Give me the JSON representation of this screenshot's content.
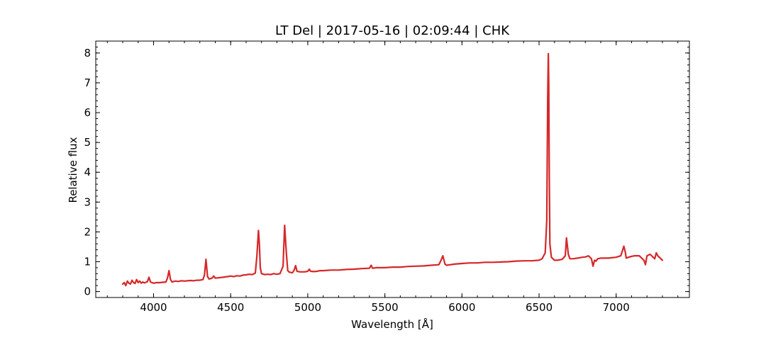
{
  "chart_data": {
    "type": "line",
    "title": "LT Del | 2017-05-16 | 02:09:44 | CHK",
    "xlabel": "Wavelength [Å]",
    "ylabel": "Relative flux",
    "xlim": [
      3625,
      7475
    ],
    "ylim": [
      -0.2,
      8.4
    ],
    "x_ticks": [
      4000,
      4500,
      5000,
      5500,
      6000,
      6500,
      7000
    ],
    "y_ticks": [
      0,
      1,
      2,
      3,
      4,
      5,
      6,
      7,
      8
    ],
    "x_minor_step": 100,
    "y_minor_step": 0.2,
    "grid": false,
    "legend": "none",
    "line_color": "#d62728",
    "series": [
      {
        "x": [
          3800,
          3810,
          3820,
          3830,
          3840,
          3850,
          3860,
          3870,
          3880,
          3890,
          3900,
          3910,
          3920,
          3930,
          3940,
          3950,
          3960,
          3970,
          3980,
          3990,
          4000,
          4020,
          4040,
          4060,
          4080,
          4090,
          4100,
          4110,
          4120,
          4140,
          4160,
          4180,
          4200,
          4220,
          4240,
          4260,
          4280,
          4300,
          4320,
          4330,
          4340,
          4350,
          4360,
          4380,
          4390,
          4400,
          4420,
          4450,
          4480,
          4500,
          4520,
          4540,
          4560,
          4580,
          4600,
          4620,
          4640,
          4660,
          4670,
          4680,
          4686,
          4692,
          4700,
          4720,
          4740,
          4760,
          4780,
          4800,
          4820,
          4840,
          4850,
          4861,
          4870,
          4880,
          4900,
          4910,
          4921,
          4930,
          4950,
          4980,
          5000,
          5010,
          5015,
          5020,
          5040,
          5060,
          5080,
          5100,
          5150,
          5200,
          5250,
          5300,
          5350,
          5400,
          5411,
          5420,
          5450,
          5500,
          5550,
          5600,
          5650,
          5700,
          5750,
          5800,
          5850,
          5860,
          5876,
          5890,
          5900,
          5950,
          6000,
          6050,
          6100,
          6150,
          6200,
          6250,
          6300,
          6350,
          6400,
          6450,
          6500,
          6520,
          6540,
          6550,
          6556,
          6560,
          6563,
          6566,
          6570,
          6580,
          6600,
          6620,
          6650,
          6670,
          6678,
          6690,
          6700,
          6720,
          6750,
          6780,
          6800,
          6820,
          6840,
          6850,
          6860,
          6870,
          6880,
          6900,
          6950,
          7000,
          7030,
          7050,
          7060,
          7065,
          7080,
          7100,
          7120,
          7150,
          7180,
          7190,
          7200,
          7220,
          7240,
          7250,
          7260,
          7270,
          7280,
          7290,
          7300
        ],
        "y": [
          0.25,
          0.3,
          0.2,
          0.35,
          0.28,
          0.25,
          0.38,
          0.3,
          0.27,
          0.4,
          0.3,
          0.35,
          0.28,
          0.32,
          0.29,
          0.31,
          0.33,
          0.48,
          0.32,
          0.3,
          0.28,
          0.3,
          0.3,
          0.31,
          0.32,
          0.45,
          0.7,
          0.4,
          0.32,
          0.35,
          0.34,
          0.36,
          0.35,
          0.36,
          0.37,
          0.36,
          0.38,
          0.38,
          0.4,
          0.55,
          1.08,
          0.5,
          0.42,
          0.45,
          0.52,
          0.45,
          0.46,
          0.48,
          0.5,
          0.52,
          0.5,
          0.53,
          0.52,
          0.55,
          0.56,
          0.58,
          0.57,
          0.62,
          1.2,
          2.05,
          1.6,
          0.8,
          0.6,
          0.57,
          0.58,
          0.57,
          0.6,
          0.58,
          0.6,
          0.85,
          2.22,
          1.3,
          0.7,
          0.65,
          0.63,
          0.7,
          0.87,
          0.68,
          0.66,
          0.66,
          0.68,
          0.75,
          0.7,
          0.68,
          0.67,
          0.68,
          0.7,
          0.7,
          0.72,
          0.72,
          0.74,
          0.75,
          0.77,
          0.78,
          0.88,
          0.78,
          0.8,
          0.8,
          0.82,
          0.82,
          0.84,
          0.85,
          0.86,
          0.88,
          0.9,
          1.0,
          1.2,
          0.92,
          0.88,
          0.92,
          0.94,
          0.96,
          0.96,
          0.98,
          0.98,
          0.99,
          1.0,
          1.02,
          1.03,
          1.03,
          1.05,
          1.1,
          1.3,
          2.4,
          6.5,
          7.98,
          7.0,
          4.0,
          1.6,
          1.15,
          1.05,
          1.05,
          1.08,
          1.2,
          1.8,
          1.25,
          1.1,
          1.1,
          1.12,
          1.15,
          1.16,
          1.2,
          1.1,
          0.85,
          1.05,
          1.02,
          1.1,
          1.12,
          1.12,
          1.15,
          1.2,
          1.52,
          1.3,
          1.12,
          1.15,
          1.18,
          1.2,
          1.2,
          1.05,
          0.9,
          1.2,
          1.25,
          1.15,
          1.1,
          1.3,
          1.2,
          1.15,
          1.1,
          1.05
        ]
      }
    ]
  }
}
